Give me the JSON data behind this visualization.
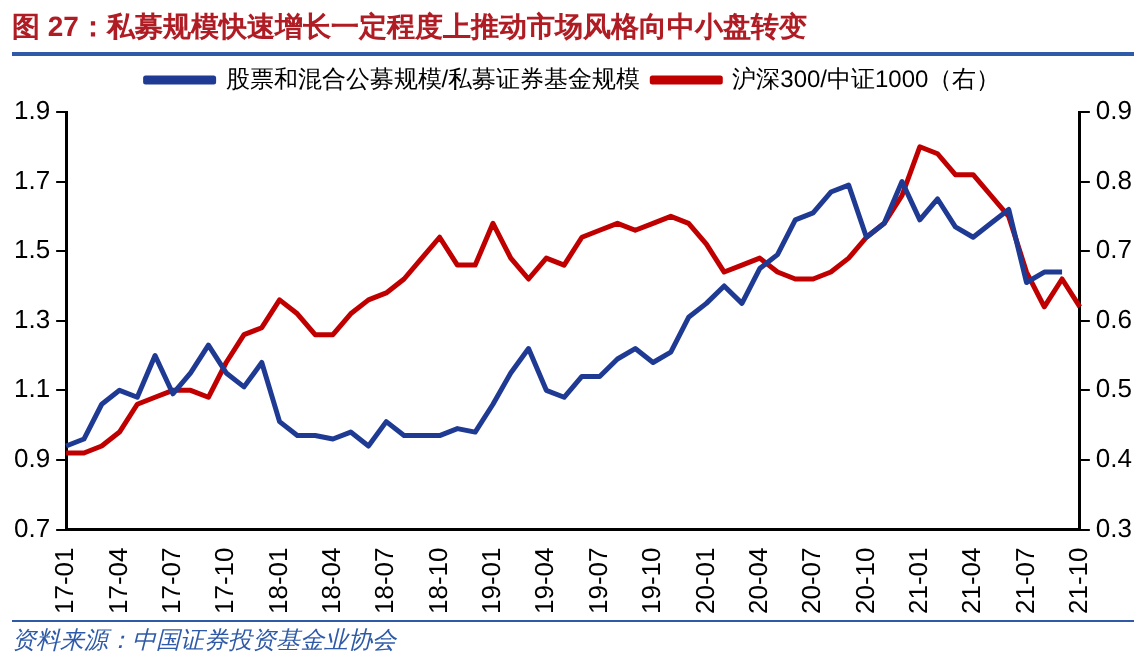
{
  "chart_data": {
    "type": "line",
    "title": "图 27：私募规模快速增长一定程度上推动市场风格向中小盘转变",
    "annotations": [
      "资料来源：中国证券投资基金业协会"
    ],
    "categories": [
      "17-01",
      null,
      null,
      "17-04",
      null,
      null,
      "17-07",
      null,
      null,
      "17-10",
      null,
      null,
      "18-01",
      null,
      null,
      "18-04",
      null,
      null,
      "18-07",
      null,
      null,
      "18-10",
      null,
      null,
      "19-01",
      null,
      null,
      "19-04",
      null,
      null,
      "19-07",
      null,
      null,
      "19-10",
      null,
      null,
      "20-01",
      null,
      null,
      "20-04",
      null,
      null,
      "20-07",
      null,
      null,
      "20-10",
      null,
      null,
      "21-01",
      null,
      null,
      "21-04",
      null,
      null,
      "21-07",
      null,
      null,
      "21-10"
    ],
    "series": [
      {
        "name": "股票和混合公募规模/私募证券基金规模",
        "color": "#1f3a93",
        "values": [
          0.94,
          0.96,
          1.06,
          1.1,
          1.08,
          1.2,
          1.09,
          1.15,
          1.23,
          1.15,
          1.11,
          1.18,
          1.01,
          0.97,
          0.97,
          0.96,
          0.98,
          0.94,
          1.01,
          0.97,
          0.97,
          0.97,
          0.99,
          0.98,
          1.06,
          1.15,
          1.22,
          1.1,
          1.08,
          1.14,
          1.14,
          1.19,
          1.22,
          1.18,
          1.21,
          1.31,
          1.35,
          1.4,
          1.35,
          1.45,
          1.49,
          1.59,
          1.61,
          1.67,
          1.69,
          1.54,
          1.58,
          1.7,
          1.59,
          1.65,
          1.57,
          1.54,
          1.58,
          1.62,
          1.41,
          1.44,
          1.44,
          null
        ]
      },
      {
        "name": "沪深300/中证1000（右）",
        "color": "#c00000",
        "axis": "y2",
        "values": [
          0.41,
          0.41,
          0.42,
          0.44,
          0.48,
          0.49,
          0.5,
          0.5,
          0.49,
          0.54,
          0.58,
          0.59,
          0.63,
          0.61,
          0.58,
          0.58,
          0.61,
          0.63,
          0.64,
          0.66,
          0.69,
          0.72,
          0.68,
          0.68,
          0.74,
          0.69,
          0.66,
          0.69,
          0.68,
          0.72,
          0.73,
          0.74,
          0.73,
          0.74,
          0.75,
          0.74,
          0.71,
          0.67,
          0.68,
          0.69,
          0.67,
          0.66,
          0.66,
          0.67,
          0.69,
          0.72,
          0.74,
          0.78,
          0.85,
          0.84,
          0.81,
          0.81,
          0.78,
          0.75,
          0.67,
          0.62,
          0.66,
          0.62
        ]
      }
    ],
    "ylim": [
      0.7,
      1.9
    ],
    "yticks": [
      0.7,
      0.9,
      1.1,
      1.3,
      1.5,
      1.7,
      1.9
    ],
    "y2lim": [
      0.3,
      0.9
    ],
    "y2ticks": [
      0.3,
      0.4,
      0.5,
      0.6,
      0.7,
      0.8,
      0.9
    ],
    "grid": false,
    "legend": "top",
    "marker": "none",
    "line_style": "solid"
  }
}
